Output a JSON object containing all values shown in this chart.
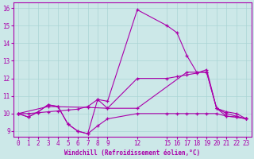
{
  "xlabel": "Windchill (Refroidissement éolien,°C)",
  "background_color": "#cce8e8",
  "line_color": "#aa00aa",
  "xlim": [
    -0.5,
    23.5
  ],
  "ylim": [
    8.7,
    16.3
  ],
  "xticks": [
    0,
    1,
    2,
    3,
    4,
    5,
    6,
    7,
    8,
    9,
    12,
    15,
    16,
    17,
    18,
    19,
    20,
    21,
    22,
    23
  ],
  "yticks": [
    9,
    10,
    11,
    12,
    13,
    14,
    15,
    16
  ],
  "grid_color": "#aad4d4",
  "series": [
    {
      "x": [
        0,
        1,
        2,
        3,
        4,
        5,
        6,
        7,
        8,
        9,
        12,
        15,
        16,
        17,
        18,
        19,
        20,
        21,
        22,
        23
      ],
      "y": [
        10.0,
        9.8,
        10.1,
        10.5,
        10.4,
        9.4,
        9.0,
        8.85,
        10.8,
        10.7,
        15.9,
        15.0,
        14.6,
        13.3,
        12.35,
        12.35,
        10.3,
        9.85,
        9.8,
        9.7
      ]
    },
    {
      "x": [
        0,
        1,
        2,
        3,
        4,
        5,
        6,
        7,
        8,
        9,
        12,
        15,
        16,
        17,
        18,
        19,
        20,
        21,
        22,
        23
      ],
      "y": [
        10.0,
        9.8,
        10.1,
        10.5,
        10.4,
        9.4,
        9.0,
        8.85,
        9.3,
        9.7,
        10.0,
        10.0,
        10.0,
        10.0,
        10.0,
        10.0,
        10.0,
        9.85,
        9.8,
        9.7
      ]
    },
    {
      "x": [
        0,
        1,
        2,
        3,
        4,
        5,
        6,
        7,
        8,
        9,
        12,
        15,
        16,
        17,
        18,
        19,
        20,
        21,
        22,
        23
      ],
      "y": [
        10.0,
        10.0,
        10.05,
        10.1,
        10.15,
        10.2,
        10.25,
        10.4,
        10.8,
        10.3,
        12.0,
        12.0,
        12.1,
        12.2,
        12.3,
        12.5,
        10.3,
        10.1,
        10.0,
        9.7
      ]
    },
    {
      "x": [
        0,
        3,
        7,
        9,
        12,
        17,
        19,
        20,
        21,
        22,
        23
      ],
      "y": [
        10.0,
        10.4,
        10.35,
        10.3,
        10.3,
        12.35,
        12.35,
        10.3,
        10.0,
        9.85,
        9.7
      ]
    }
  ]
}
